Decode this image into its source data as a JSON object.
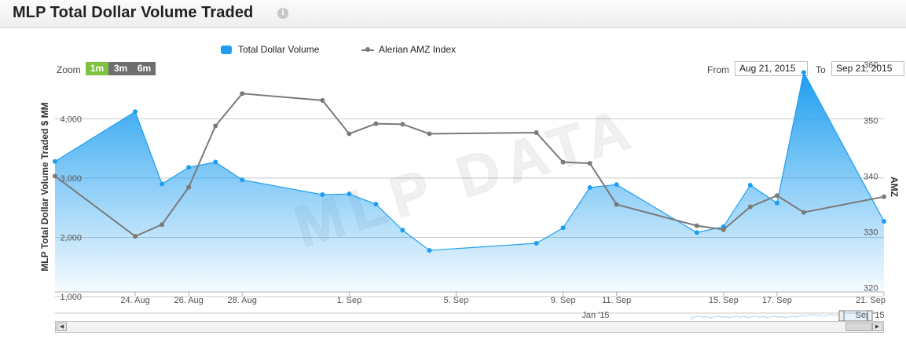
{
  "header": {
    "title": "MLP Total Dollar Volume Traded",
    "info_icon": "info-icon"
  },
  "legend": {
    "volume_label": "Total Dollar Volume",
    "index_label": "Alerian AMZ Index"
  },
  "zoom": {
    "label": "Zoom",
    "buttons": [
      "1m",
      "3m",
      "6m"
    ],
    "active": "1m"
  },
  "range": {
    "from_label": "From",
    "from_value": "Aug 21, 2015",
    "to_label": "To",
    "to_value": "Sep 21, 2015"
  },
  "navigator": {
    "labels": [
      "Jan '15",
      "Sep '15"
    ]
  },
  "colors": {
    "volume": "#1e9ef0",
    "index": "#7a7a7a",
    "zoom_active": "#7fc242",
    "zoom_inactive": "#6e6e6e"
  },
  "chart_data": {
    "type": "area",
    "ylabel": "MLP Total Dollar Volume Traded $ MM",
    "y2label": "AMZ",
    "watermark": "MLP DATA",
    "ylim": [
      1000,
      4600
    ],
    "y2lim": [
      319.5,
      357.8
    ],
    "x_ticks": [
      "24. Aug",
      "26. Aug",
      "28. Aug",
      "1. Sep",
      "5. Sep",
      "9. Sep",
      "11. Sep",
      "15. Sep",
      "17. Sep",
      "21. Sep"
    ],
    "y_ticks": [
      "1,000",
      "2,000",
      "3,000",
      "4,000"
    ],
    "y2_ticks": [
      "320",
      "330",
      "340",
      "350",
      "360"
    ],
    "grid": true,
    "series": [
      {
        "name": "Total Dollar Volume",
        "axis": "left",
        "x": [
          "2015-08-21",
          "2015-08-24",
          "2015-08-25",
          "2015-08-26",
          "2015-08-27",
          "2015-08-28",
          "2015-08-31",
          "2015-09-01",
          "2015-09-02",
          "2015-09-03",
          "2015-09-04",
          "2015-09-08",
          "2015-09-09",
          "2015-09-10",
          "2015-09-11",
          "2015-09-14",
          "2015-09-15",
          "2015-09-16",
          "2015-09-17",
          "2015-09-18",
          "2015-09-21"
        ],
        "values": [
          3280,
          4120,
          2900,
          3180,
          3270,
          2970,
          2720,
          2730,
          2560,
          2120,
          1780,
          1900,
          2160,
          2840,
          2890,
          2080,
          2180,
          2880,
          2580,
          4780,
          2270
        ]
      },
      {
        "name": "Alerian AMZ Index",
        "axis": "right",
        "x": [
          "2015-08-21",
          "2015-08-24",
          "2015-08-25",
          "2015-08-26",
          "2015-08-27",
          "2015-08-28",
          "2015-08-31",
          "2015-09-01",
          "2015-09-02",
          "2015-09-03",
          "2015-09-04",
          "2015-09-08",
          "2015-09-09",
          "2015-09-10",
          "2015-09-11",
          "2015-09-14",
          "2015-09-15",
          "2015-09-16",
          "2015-09-17",
          "2015-09-18",
          "2015-09-21"
        ],
        "values": [
          340.0,
          329.2,
          331.3,
          338.0,
          349.0,
          354.8,
          353.6,
          347.6,
          349.4,
          349.3,
          347.6,
          347.8,
          342.5,
          342.3,
          334.9,
          331.1,
          330.4,
          334.5,
          336.5,
          333.5,
          336.3
        ]
      }
    ]
  }
}
